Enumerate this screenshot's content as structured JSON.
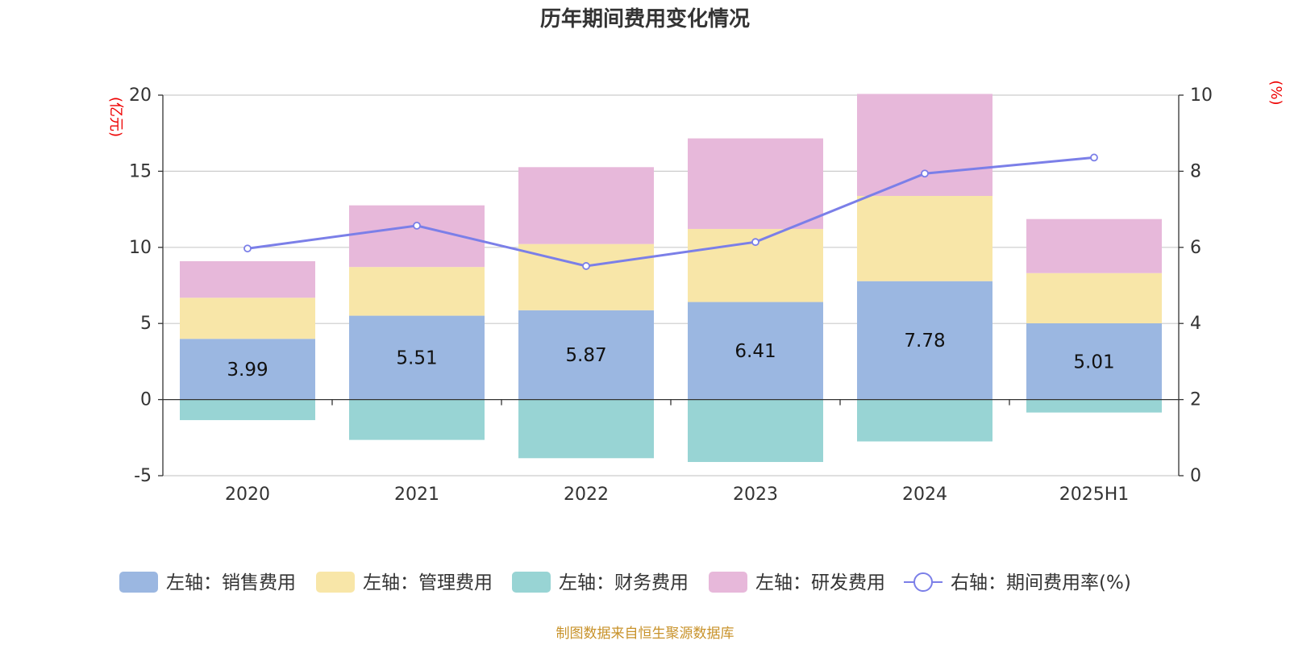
{
  "chart_data": {
    "type": "bar",
    "title": "历年期间费用变化情况",
    "categories": [
      "2020",
      "2021",
      "2022",
      "2023",
      "2024",
      "2025H1"
    ],
    "left_axis": {
      "unit_label": "(亿元)",
      "ylim": [
        -5,
        20
      ],
      "ticks": [
        "20",
        "15",
        "10",
        "5",
        "0",
        "-5"
      ]
    },
    "right_axis": {
      "unit_label": "(%)",
      "ylim": [
        0,
        10
      ],
      "ticks": [
        "10",
        "8",
        "6",
        "4",
        "2",
        "0"
      ]
    },
    "series": [
      {
        "name": "左轴：销售费用",
        "axis": "left",
        "color": "#9bb7e1",
        "values": [
          3.99,
          5.51,
          5.87,
          6.41,
          7.78,
          5.01
        ],
        "data_labels": [
          "3.99",
          "5.51",
          "5.87",
          "6.41",
          "7.78",
          "5.01"
        ]
      },
      {
        "name": "左轴：管理费用",
        "axis": "left",
        "color": "#f8e6a8",
        "values": [
          2.7,
          3.2,
          4.35,
          4.8,
          5.6,
          3.3
        ]
      },
      {
        "name": "左轴：财务费用",
        "axis": "left",
        "color": "#98d4d4",
        "values": [
          -1.35,
          -2.65,
          -3.85,
          -4.1,
          -2.75,
          -0.85
        ]
      },
      {
        "name": "左轴：研发费用",
        "axis": "left",
        "color": "#e7b8da",
        "values": [
          2.4,
          4.05,
          5.05,
          5.95,
          6.7,
          3.55
        ]
      },
      {
        "name": "右轴：期间费用率(%)",
        "axis": "right",
        "type": "line",
        "color": "#7b7fe8",
        "values": [
          5.97,
          6.57,
          5.51,
          6.14,
          7.94,
          8.36
        ]
      }
    ],
    "grid": true,
    "legend_position": "bottom"
  },
  "source_text": "制图数据来自恒生聚源数据库"
}
